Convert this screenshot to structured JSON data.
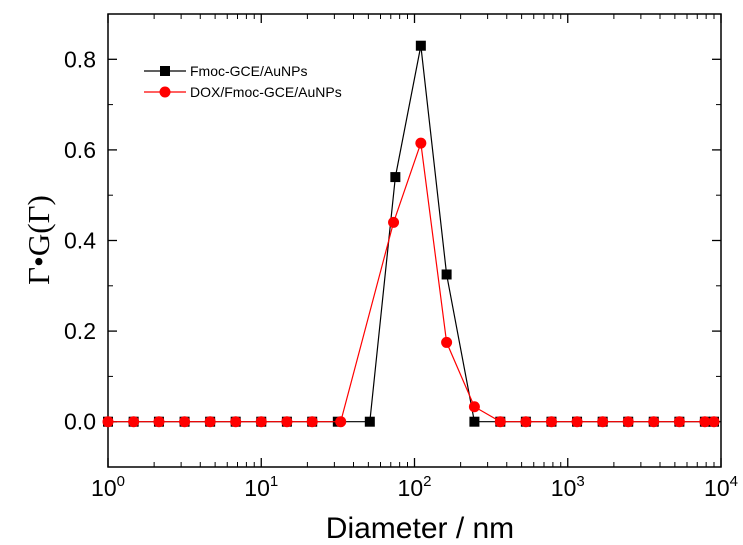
{
  "chart_data": {
    "type": "line",
    "xscale": "log",
    "xlim": [
      1,
      10000
    ],
    "ylim": [
      -0.1,
      0.9
    ],
    "xlabel": "Diameter / nm",
    "ylabel": "Γ•G(Γ)",
    "x_ticks": [
      {
        "base": "10",
        "exp": "0"
      },
      {
        "base": "10",
        "exp": "1"
      },
      {
        "base": "10",
        "exp": "2"
      },
      {
        "base": "10",
        "exp": "3"
      },
      {
        "base": "10",
        "exp": "4"
      }
    ],
    "y_ticks": [
      "0.0",
      "0.2",
      "0.4",
      "0.6",
      "0.8"
    ],
    "legend_position": "top-left",
    "grid": false,
    "series": [
      {
        "name": "Fmoc-GCE/AuNPs",
        "color": "#000000",
        "marker": "square",
        "x": [
          1.0,
          1.47,
          2.15,
          3.16,
          4.64,
          6.81,
          10.0,
          14.7,
          21.5,
          31.6,
          51.1,
          75.0,
          110.0,
          162.0,
          246.0,
          363.0,
          533.0,
          783.0,
          1150.0,
          1690.0,
          2480.0,
          3640.0,
          5350.0,
          7850.0,
          9000.0
        ],
        "y": [
          0,
          0,
          0,
          0,
          0,
          0,
          0,
          0,
          0,
          0,
          0.0,
          0.54,
          0.83,
          0.325,
          0.0,
          0,
          0,
          0,
          0,
          0,
          0,
          0,
          0,
          0,
          0
        ]
      },
      {
        "name": "DOX/Fmoc-GCE/AuNPs",
        "color": "#ff0000",
        "marker": "circle",
        "x": [
          1.0,
          1.47,
          2.15,
          3.16,
          4.64,
          6.81,
          10.0,
          14.7,
          21.5,
          33.0,
          73.0,
          110.0,
          162.0,
          246.0,
          363.0,
          533.0,
          783.0,
          1150.0,
          1690.0,
          2480.0,
          3640.0,
          5350.0,
          7850.0,
          9000.0
        ],
        "y": [
          0,
          0,
          0,
          0,
          0,
          0,
          0,
          0,
          0,
          0,
          0.44,
          0.615,
          0.175,
          0.033,
          0,
          0,
          0,
          0,
          0,
          0,
          0,
          0,
          0,
          0
        ]
      }
    ]
  }
}
